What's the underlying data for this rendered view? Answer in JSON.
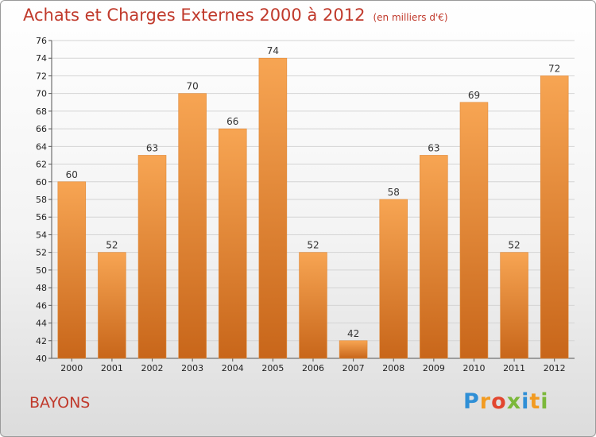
{
  "header": {
    "title": "Achats et Charges Externes 2000 à 2012",
    "unit": "(en milliers d'€)"
  },
  "footer": {
    "place": "BAYONS",
    "logo_text": "Proxiti"
  },
  "colors": {
    "bar_top": "#f7a553",
    "bar_bottom": "#c8661a",
    "title": "#c0392b"
  },
  "chart_data": {
    "type": "bar",
    "title": "Achats et Charges Externes 2000 à 2012",
    "subtitle": "(en milliers d'€)",
    "xlabel": "",
    "ylabel": "",
    "categories": [
      "2000",
      "2001",
      "2002",
      "2003",
      "2004",
      "2005",
      "2006",
      "2007",
      "2008",
      "2009",
      "2010",
      "2011",
      "2012"
    ],
    "values": [
      60,
      52,
      63,
      70,
      66,
      74,
      52,
      42,
      58,
      63,
      69,
      52,
      72
    ],
    "ylim": [
      40,
      76
    ],
    "ytick_step": 2,
    "grid": true,
    "legend": "none"
  }
}
